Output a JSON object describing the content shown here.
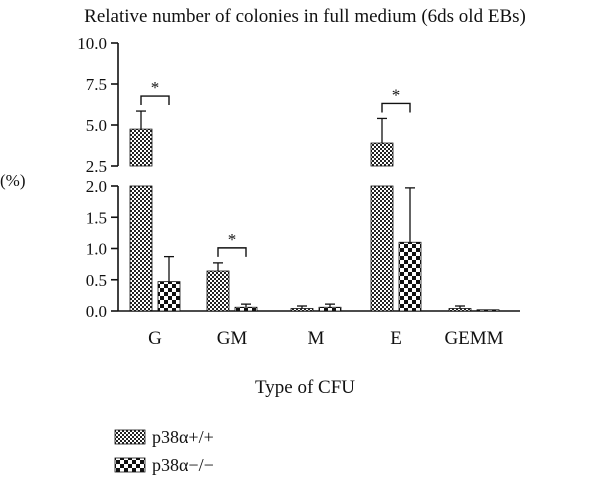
{
  "chart_data": {
    "type": "bar",
    "title": "Relative number of colonies in full medium (6ds old EBs)",
    "xlabel": "Type of CFU",
    "ylabel": "(%)",
    "categories": [
      "G",
      "GM",
      "M",
      "E",
      "GEMM"
    ],
    "y_lower": {
      "range": [
        0,
        2.0
      ],
      "ticks": [
        "0.0",
        "0.5",
        "1.0",
        "1.5",
        "2.0"
      ]
    },
    "y_upper": {
      "range": [
        2.5,
        10.0
      ],
      "ticks": [
        "2.5",
        "5.0",
        "7.5",
        "10.0"
      ]
    },
    "axis_break": [
      2.0,
      2.5
    ],
    "series": [
      {
        "name": "p38α+/+",
        "values": [
          4.75,
          0.64,
          0.04,
          3.9,
          0.04
        ],
        "errors": [
          1.1,
          0.13,
          0.04,
          1.5,
          0.04
        ]
      },
      {
        "name": "p38α−/−",
        "values": [
          0.47,
          0.06,
          0.06,
          1.1,
          0.02
        ],
        "errors": [
          0.4,
          0.05,
          0.05,
          0.87,
          0.0
        ]
      }
    ],
    "significance": [
      {
        "category": "G",
        "label": "*"
      },
      {
        "category": "GM",
        "label": "*"
      },
      {
        "category": "E",
        "label": "*"
      }
    ],
    "legend": {
      "position": "bottom-left"
    },
    "grid": false
  }
}
